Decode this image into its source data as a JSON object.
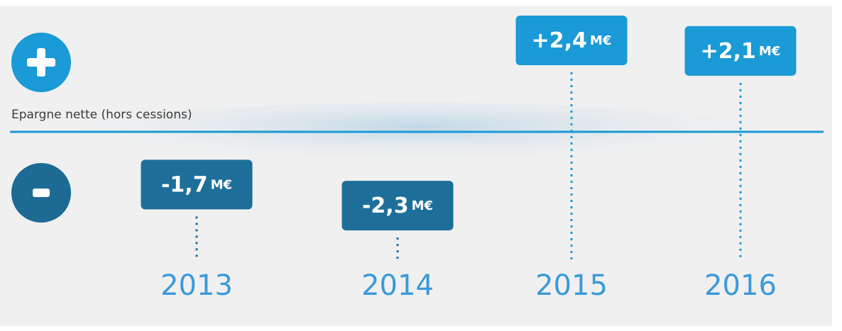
{
  "chart_data": {
    "type": "callout",
    "axis_label": "Epargne nette (hors cessions)",
    "categories": [
      "2013",
      "2014",
      "2015",
      "2016"
    ],
    "values": [
      -1.7,
      -2.3,
      2.4,
      2.1
    ],
    "value_labels": [
      "-1,7",
      "-2,3",
      "+2,4",
      "+2,1"
    ],
    "unit": "M€",
    "positive_color": "#1a9ad6",
    "negative_color": "#1d6f9a"
  }
}
